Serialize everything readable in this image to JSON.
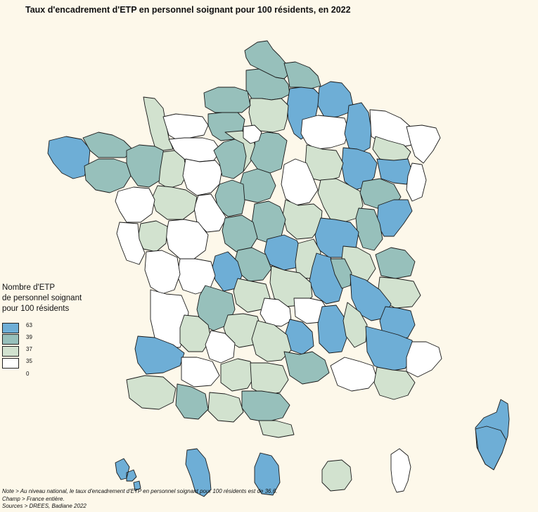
{
  "title": "Taux d'encadrement d'ETP en personnel soignant pour 100 résidents, en 2022",
  "legend": {
    "title_lines": [
      "Nombre d'ETP",
      "de personnel soignant",
      "pour 100 résidents"
    ],
    "classes": [
      {
        "color": "#6eaed6",
        "upper": "63"
      },
      {
        "color": "#97c0bb",
        "upper": "39"
      },
      {
        "color": "#d2e2cf",
        "upper": "37"
      },
      {
        "color": "#ffffff",
        "upper": "35"
      }
    ],
    "bottom_label": "0"
  },
  "notes": {
    "note": "Note > Au niveau national, le taux d'encadrement d'ETP en personnel soignant pour 100 résidents est de 36,6.",
    "champ": "Champ > France entière.",
    "sources": "Sources > DREES, Badiane 2022"
  }
}
